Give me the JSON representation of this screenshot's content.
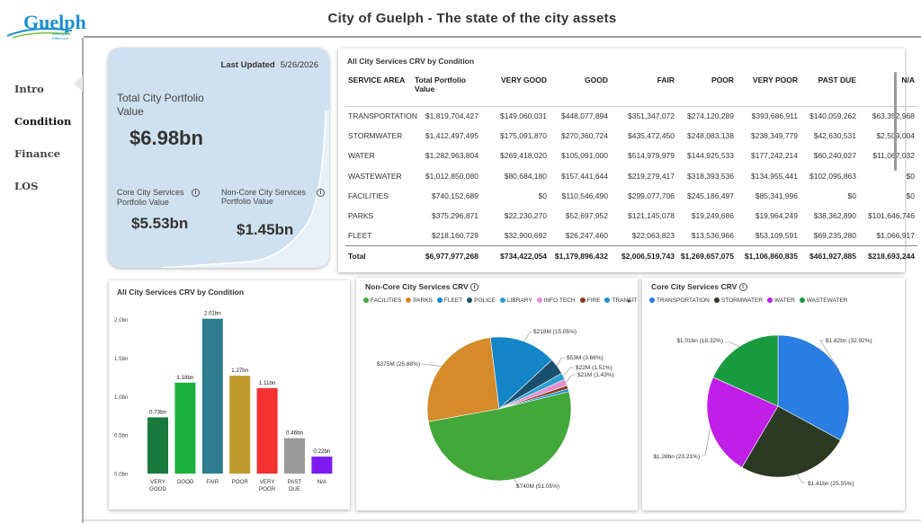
{
  "app": {
    "logo_text": "Guelph",
    "logo_tagline": "Making a Difference",
    "title": "City of Guelph - The state of the city assets"
  },
  "nav": {
    "items": [
      {
        "label": "Intro",
        "active": false
      },
      {
        "label": "Condition",
        "active": true
      },
      {
        "label": "Finance",
        "active": false
      },
      {
        "label": "LOS",
        "active": false
      }
    ]
  },
  "kpi": {
    "last_updated_label": "Last Updated",
    "last_updated_value": "5/26/2026",
    "total_label": "Total City Portfolio Value",
    "total_value": "$6.98bn",
    "core_label": "Core City Services Portfolio Value",
    "core_value": "$5.53bn",
    "noncore_label": "Non-Core City Services Portfolio Value",
    "noncore_value": "$1.45bn",
    "info_glyph": "i"
  },
  "table": {
    "title": "All City Services CRV by Condition",
    "columns": [
      "SERVICE AREA",
      "Total Portfolio Value",
      "VERY GOOD",
      "GOOD",
      "FAIR",
      "POOR",
      "VERY POOR",
      "PAST DUE",
      "N/A"
    ],
    "rows": [
      [
        "TRANSPORTATION",
        "$1,819,704,427",
        "$149,060,031",
        "$448,077,894",
        "$351,347,072",
        "$274,120,289",
        "$393,686,911",
        "$140,059,262",
        "$63,352,968"
      ],
      [
        "STORMWATER",
        "$1,412,497,495",
        "$175,091,870",
        "$270,360,724",
        "$435,472,450",
        "$248,083,138",
        "$238,349,779",
        "$42,630,531",
        "$2,509,004"
      ],
      [
        "WATER",
        "$1,282,963,804",
        "$269,418,020",
        "$105,091,000",
        "$514,979,979",
        "$144,925,533",
        "$177,242,214",
        "$60,240,027",
        "$11,067,032"
      ],
      [
        "WASTEWATER",
        "$1,012,850,080",
        "$80,684,180",
        "$157,441,644",
        "$219,279,417",
        "$318,393,536",
        "$134,955,441",
        "$102,095,863",
        "$0"
      ],
      [
        "FACILITIES",
        "$740,152,689",
        "$0",
        "$110,546,490",
        "$299,077,706",
        "$245,186,497",
        "$85,341,996",
        "$0",
        "$0"
      ],
      [
        "PARKS",
        "$375,296,871",
        "$22,230,270",
        "$52,697,952",
        "$121,145,078",
        "$19,249,686",
        "$19,964,249",
        "$38,362,890",
        "$101,646,746"
      ],
      [
        "FLEET",
        "$218,160,729",
        "$32,900,692",
        "$26,247,460",
        "$22,063,823",
        "$13,536,966",
        "$53,109,591",
        "$69,235,280",
        "$1,066,917"
      ]
    ],
    "total": [
      "Total",
      "$6,977,977,268",
      "$734,422,054",
      "$1,179,896,432",
      "$2,006,519,743",
      "$1,269,657,075",
      "$1,106,860,835",
      "$461,927,885",
      "$218,693,244"
    ]
  },
  "chart_data": [
    {
      "type": "bar",
      "title": "All City Services CRV by Condition",
      "categories": [
        "VERY GOOD",
        "GOOD",
        "FAIR",
        "POOR",
        "VERY POOR",
        "PAST DUE",
        "N/A"
      ],
      "values": [
        0.73,
        1.18,
        2.01,
        1.27,
        1.11,
        0.46,
        0.22
      ],
      "data_labels": [
        "0.73bn",
        "1.18bn",
        "2.01bn",
        "1.27bn",
        "1.11bn",
        "0.46bn",
        "0.22bn"
      ],
      "colors": [
        "#187a3c",
        "#1bb13c",
        "#2f7c8e",
        "#c09a2c",
        "#f53232",
        "#9a9a9a",
        "#7d1cf2"
      ],
      "yticks": [
        "0.0bn",
        "0.5bn",
        "1.0bn",
        "1.5bn",
        "2.0bn"
      ],
      "ylim": [
        0,
        2.1
      ],
      "grid": false
    },
    {
      "type": "pie",
      "title": "Non-Core City Services CRV",
      "legend": [
        "FACILITIES",
        "PARKS",
        "FLEET",
        "POLICE",
        "LIBRARY",
        "INFO TECH",
        "FIRE",
        "TRANSIT"
      ],
      "legend_colors": [
        "#43a83a",
        "#d58b2a",
        "#1486c8",
        "#1b4f6e",
        "#2c9fd0",
        "#e58fd0",
        "#8a3a1a",
        "#1d90d6"
      ],
      "slices": [
        {
          "label": "FACILITIES",
          "value": 51.05,
          "text": "$740M (51.05%)",
          "color": "#43a83a"
        },
        {
          "label": "PARKS",
          "value": 25.88,
          "text": "$375M (25.88%)",
          "color": "#d58b2a"
        },
        {
          "label": "FLEET",
          "value": 15.05,
          "text": "$218M (15.05%)",
          "color": "#1486c8"
        },
        {
          "label": "POLICE",
          "value": 3.66,
          "text": "$53M (3.66%)",
          "color": "#1b4f6e"
        },
        {
          "label": "LIBRARY",
          "value": 1.51,
          "text": "$22M (1.51%)",
          "color": "#2c9fd0"
        },
        {
          "label": "INFO TECH",
          "value": 1.43,
          "text": "$21M (1.43%)",
          "color": "#e58fd0"
        },
        {
          "label": "FIRE",
          "value": 0.8,
          "text": "",
          "color": "#8a3a1a"
        },
        {
          "label": "TRANSIT",
          "value": 0.62,
          "text": "",
          "color": "#1d90d6"
        }
      ]
    },
    {
      "type": "pie",
      "title": "Core City Services CRV",
      "legend": [
        "TRANSPORTATION",
        "STORMWATER",
        "WATER",
        "WASTEWATER"
      ],
      "legend_colors": [
        "#2a7de1",
        "#2b3a22",
        "#c01fe8",
        "#1a9a3e"
      ],
      "slices": [
        {
          "label": "TRANSPORTATION",
          "value": 32.92,
          "text": "$1.82bn (32.92%)",
          "color": "#2a7de1"
        },
        {
          "label": "STORMWATER",
          "value": 25.55,
          "text": "$1.41bn (25.55%)",
          "color": "#2b3a22"
        },
        {
          "label": "WATER",
          "value": 23.21,
          "text": "$1.28bn (23.21%)",
          "color": "#c01fe8"
        },
        {
          "label": "WASTEWATER",
          "value": 18.32,
          "text": "$1.01bn (18.32%)",
          "color": "#1a9a3e"
        }
      ]
    }
  ]
}
